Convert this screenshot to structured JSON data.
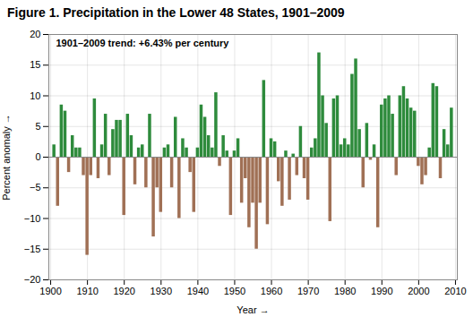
{
  "chart_data": {
    "type": "bar",
    "title": "Figure 1. Precipitation in the Lower 48 States, 1901–2009",
    "xlabel": "Year",
    "ylabel": "Percent anomaly",
    "annotation": "1901–2009 trend: +6.43% per century",
    "x": [
      1901,
      1902,
      1903,
      1904,
      1905,
      1906,
      1907,
      1908,
      1909,
      1910,
      1911,
      1912,
      1913,
      1914,
      1915,
      1916,
      1917,
      1918,
      1919,
      1920,
      1921,
      1922,
      1923,
      1924,
      1925,
      1926,
      1927,
      1928,
      1929,
      1930,
      1931,
      1932,
      1933,
      1934,
      1935,
      1936,
      1937,
      1938,
      1939,
      1940,
      1941,
      1942,
      1943,
      1944,
      1945,
      1946,
      1947,
      1948,
      1949,
      1950,
      1951,
      1952,
      1953,
      1954,
      1955,
      1956,
      1957,
      1958,
      1959,
      1960,
      1961,
      1962,
      1963,
      1964,
      1965,
      1966,
      1967,
      1968,
      1969,
      1970,
      1971,
      1972,
      1973,
      1974,
      1975,
      1976,
      1977,
      1978,
      1979,
      1980,
      1981,
      1982,
      1983,
      1984,
      1985,
      1986,
      1987,
      1988,
      1989,
      1990,
      1991,
      1992,
      1993,
      1994,
      1995,
      1996,
      1997,
      1998,
      1999,
      2000,
      2001,
      2002,
      2003,
      2004,
      2005,
      2006,
      2007,
      2008,
      2009
    ],
    "values": [
      2.0,
      -8.0,
      8.5,
      7.5,
      -2.5,
      3.5,
      1.5,
      1.5,
      -3.0,
      -16.0,
      -3.0,
      9.5,
      -3.5,
      2.0,
      7.0,
      -3.0,
      4.5,
      6.0,
      6.0,
      -9.5,
      7.0,
      3.5,
      -4.5,
      1.5,
      2.0,
      -5.0,
      7.0,
      -13.0,
      -5.0,
      -9.0,
      1.5,
      2.0,
      -5.0,
      6.5,
      -10.0,
      3.0,
      1.5,
      -2.5,
      -9.0,
      1.5,
      8.5,
      6.5,
      3.5,
      1.5,
      10.5,
      -1.5,
      3.5,
      1.0,
      -9.5,
      1.0,
      3.0,
      -7.5,
      -3.5,
      -11.5,
      -7.5,
      -15.0,
      -7.5,
      12.5,
      -11.0,
      3.0,
      2.5,
      -4.0,
      -8.0,
      1.0,
      -7.0,
      0.5,
      -3.0,
      5.0,
      -3.5,
      -7.0,
      1.5,
      3.0,
      17.0,
      10.0,
      5.5,
      -10.5,
      9.5,
      10.0,
      2.0,
      3.0,
      2.0,
      13.5,
      16.0,
      4.5,
      -5.0,
      5.5,
      -0.5,
      2.0,
      -11.5,
      8.5,
      9.5,
      10.0,
      7.0,
      -3.0,
      10.0,
      11.5,
      9.5,
      8.0,
      7.5,
      -1.5,
      -4.5,
      -3.0,
      1.5,
      12.0,
      11.5,
      -3.5,
      4.5,
      2.0,
      8.0
    ],
    "colors": [
      "#2e8b3c",
      "#a07055",
      "#2e8b3c",
      "#2e8b3c",
      "#a07055",
      "#2e8b3c",
      "#2e8b3c",
      "#2e8b3c",
      "#a07055",
      "#a07055",
      "#a07055",
      "#2e8b3c",
      "#a07055",
      "#2e8b3c",
      "#2e8b3c",
      "#a07055",
      "#2e8b3c",
      "#2e8b3c",
      "#2e8b3c",
      "#a07055",
      "#2e8b3c",
      "#2e8b3c",
      "#a07055",
      "#2e8b3c",
      "#2e8b3c",
      "#a07055",
      "#2e8b3c",
      "#a07055",
      "#a07055",
      "#a07055",
      "#2e8b3c",
      "#2e8b3c",
      "#a07055",
      "#2e8b3c",
      "#a07055",
      "#2e8b3c",
      "#2e8b3c",
      "#a07055",
      "#a07055",
      "#2e8b3c",
      "#2e8b3c",
      "#2e8b3c",
      "#2e8b3c",
      "#2e8b3c",
      "#2e8b3c",
      "#a07055",
      "#2e8b3c",
      "#2e8b3c",
      "#a07055",
      "#2e8b3c",
      "#2e8b3c",
      "#a07055",
      "#a07055",
      "#a07055",
      "#a07055",
      "#a07055",
      "#a07055",
      "#2e8b3c",
      "#a07055",
      "#2e8b3c",
      "#2e8b3c",
      "#a07055",
      "#a07055",
      "#2e8b3c",
      "#a07055",
      "#2e8b3c",
      "#a07055",
      "#2e8b3c",
      "#a07055",
      "#a07055",
      "#2e8b3c",
      "#2e8b3c",
      "#2e8b3c",
      "#2e8b3c",
      "#2e8b3c",
      "#a07055",
      "#2e8b3c",
      "#2e8b3c",
      "#2e8b3c",
      "#2e8b3c",
      "#2e8b3c",
      "#2e8b3c",
      "#2e8b3c",
      "#2e8b3c",
      "#a07055",
      "#2e8b3c",
      "#a07055",
      "#2e8b3c",
      "#a07055",
      "#2e8b3c",
      "#2e8b3c",
      "#2e8b3c",
      "#2e8b3c",
      "#a07055",
      "#2e8b3c",
      "#2e8b3c",
      "#2e8b3c",
      "#2e8b3c",
      "#2e8b3c",
      "#a07055",
      "#a07055",
      "#a07055",
      "#2e8b3c",
      "#2e8b3c",
      "#2e8b3c",
      "#a07055",
      "#2e8b3c",
      "#2e8b3c",
      "#2e8b3c"
    ],
    "xlim": [
      1899.5,
      2010.5
    ],
    "xticks": [
      1900,
      1910,
      1920,
      1930,
      1940,
      1950,
      1960,
      1970,
      1980,
      1990,
      2000,
      2010
    ],
    "ylim": [
      -20,
      20
    ],
    "yticks": [
      -20,
      -15,
      -10,
      -5,
      0,
      5,
      10,
      15,
      20
    ],
    "grid": true
  }
}
